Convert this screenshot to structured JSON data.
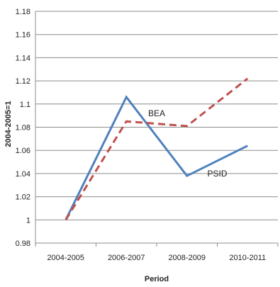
{
  "chart_data": {
    "type": "line",
    "categories": [
      "2004-2005",
      "2006-2007",
      "2008-2009",
      "2010-2011"
    ],
    "series": [
      {
        "name": "PSID",
        "values": [
          1.0,
          1.106,
          1.038,
          1.064
        ],
        "color": "#4f81bd",
        "style": "solid"
      },
      {
        "name": "BEA",
        "values": [
          1.0,
          1.085,
          1.081,
          1.122
        ],
        "color": "#c0504d",
        "style": "dashed"
      }
    ],
    "title": "",
    "xlabel": "Period",
    "ylabel": "2004-2005=1",
    "ylim": [
      0.98,
      1.18
    ],
    "yticks": [
      "0.98",
      "1",
      "1.02",
      "1.04",
      "1.06",
      "1.08",
      "1.1",
      "1.12",
      "1.14",
      "1.16",
      "1.18"
    ],
    "grid": true,
    "legend": "inline labels"
  }
}
